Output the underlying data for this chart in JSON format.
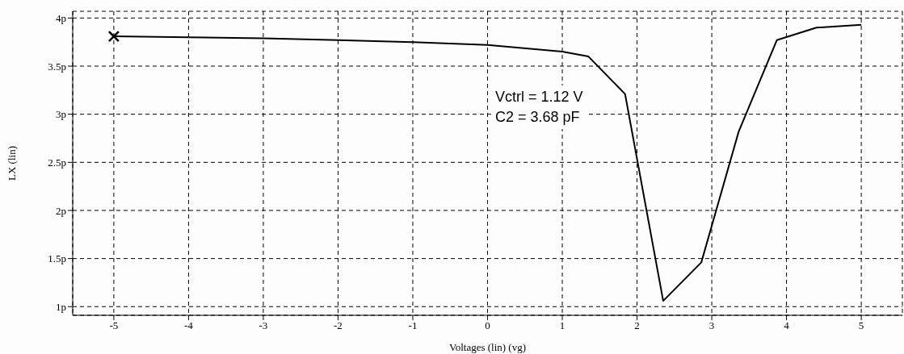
{
  "chart_data": {
    "type": "line",
    "xlabel": "Voltages (lin) (vg)",
    "ylabel": "LX (lin)",
    "xlim": [
      -5.55,
      5.55
    ],
    "xticks": [
      -5,
      -4,
      -3,
      -2,
      -1,
      0,
      1,
      2,
      3,
      4,
      5
    ],
    "ylim": [
      0.91,
      4.07
    ],
    "yticks": [
      {
        "value": 1,
        "label": "1p"
      },
      {
        "value": 1.5,
        "label": "1.5p"
      },
      {
        "value": 2,
        "label": "2p"
      },
      {
        "value": 2.5,
        "label": "2.5p"
      },
      {
        "value": 3,
        "label": "3p"
      },
      {
        "value": 3.5,
        "label": "3.5p"
      },
      {
        "value": 4,
        "label": "4p"
      }
    ],
    "grid": true,
    "annotations": [
      "Vctrl = 1.12 V",
      "C2 = 3.68 pF"
    ],
    "series": [
      {
        "color": "#000000",
        "marker": "none",
        "x": [
          -5,
          -4,
          -3,
          -2,
          -1,
          0,
          1,
          1.35,
          1.84,
          2.35,
          2.86,
          3.36,
          3.87,
          4.4,
          5
        ],
        "values": [
          3.81,
          3.8,
          3.79,
          3.77,
          3.75,
          3.72,
          3.65,
          3.6,
          3.21,
          1.06,
          1.46,
          2.82,
          3.77,
          3.9,
          3.93
        ]
      },
      {
        "type": "scatter",
        "color": "#000000",
        "marker": "cross",
        "x": [
          -5
        ],
        "values": [
          3.81
        ]
      }
    ]
  }
}
